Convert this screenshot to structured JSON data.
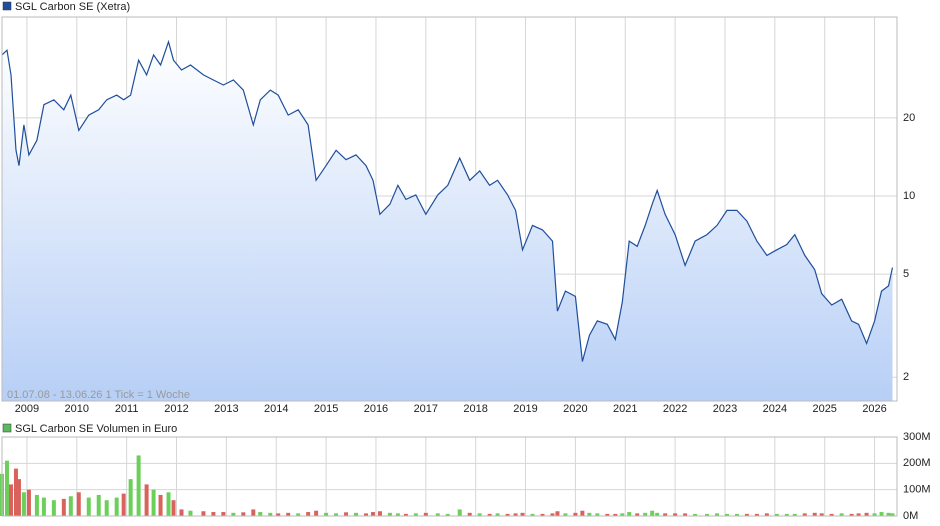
{
  "chart_data": [
    {
      "type": "line",
      "title": "SGL Carbon SE (Xetra)",
      "annotation": "01.07.08 - 13.06.26    1 Tick = 1 Woche",
      "log_scale": true,
      "grid": true,
      "color": "#1f4e9c",
      "xlim": [
        2008.5,
        2026.45
      ],
      "xticks": [
        2009,
        2010,
        2011,
        2012,
        2013,
        2014,
        2015,
        2016,
        2017,
        2018,
        2019,
        2020,
        2021,
        2022,
        2023,
        2024,
        2025,
        2026
      ],
      "ylim": [
        1.62,
        49
      ],
      "yticks": [
        2,
        5,
        10,
        20
      ],
      "x": [
        2008.5,
        2008.6,
        2008.68,
        2008.78,
        2008.84,
        2008.94,
        2009.04,
        2009.2,
        2009.34,
        2009.54,
        2009.74,
        2009.88,
        2010.04,
        2010.24,
        2010.44,
        2010.6,
        2010.8,
        2010.94,
        2011.08,
        2011.24,
        2011.4,
        2011.54,
        2011.68,
        2011.84,
        2011.94,
        2012.1,
        2012.28,
        2012.54,
        2012.74,
        2012.94,
        2013.14,
        2013.34,
        2013.54,
        2013.68,
        2013.88,
        2014.04,
        2014.24,
        2014.44,
        2014.64,
        2014.8,
        2015.0,
        2015.2,
        2015.4,
        2015.6,
        2015.8,
        2015.94,
        2016.08,
        2016.28,
        2016.44,
        2016.6,
        2016.8,
        2017.0,
        2017.24,
        2017.44,
        2017.68,
        2017.88,
        2018.08,
        2018.28,
        2018.44,
        2018.64,
        2018.8,
        2018.94,
        2019.14,
        2019.34,
        2019.54,
        2019.64,
        2019.8,
        2020.0,
        2020.14,
        2020.28,
        2020.44,
        2020.64,
        2020.8,
        2020.94,
        2021.08,
        2021.24,
        2021.4,
        2021.54,
        2021.64,
        2021.8,
        2022.0,
        2022.2,
        2022.4,
        2022.64,
        2022.84,
        2023.04,
        2023.24,
        2023.44,
        2023.64,
        2023.84,
        2024.04,
        2024.24,
        2024.4,
        2024.6,
        2024.8,
        2024.94,
        2025.14,
        2025.34,
        2025.54,
        2025.68,
        2025.84,
        2026.0,
        2026.14,
        2026.28,
        2026.36
      ],
      "values": [
        35,
        36.5,
        29.3,
        15,
        13.1,
        18.8,
        14.4,
        16.4,
        22.5,
        23.5,
        21.5,
        24.5,
        17.9,
        20.5,
        21.5,
        23.5,
        24.5,
        23.5,
        24.5,
        33.4,
        29.3,
        35,
        32,
        39.3,
        33.4,
        30.6,
        32,
        29.3,
        28,
        26.8,
        28,
        25.6,
        18.8,
        23.5,
        25.6,
        24.5,
        20.5,
        21.5,
        18.8,
        11.5,
        13.1,
        15,
        13.8,
        14.4,
        13.1,
        11.5,
        8.5,
        9.3,
        11,
        9.7,
        10.1,
        8.5,
        10.1,
        11,
        14,
        11.5,
        12.5,
        11,
        11.5,
        10.1,
        8.8,
        6.2,
        7.7,
        7.4,
        6.7,
        3.6,
        4.3,
        4.1,
        2.3,
        2.9,
        3.3,
        3.2,
        2.8,
        3.9,
        6.7,
        6.4,
        7.7,
        9.3,
        10.5,
        8.5,
        7.1,
        5.4,
        6.7,
        7.1,
        7.7,
        8.8,
        8.8,
        8,
        6.7,
        5.9,
        6.2,
        6.5,
        7.1,
        5.9,
        5.2,
        4.2,
        3.8,
        4,
        3.3,
        3.2,
        2.7,
        3.3,
        4.3,
        4.5,
        5.3
      ]
    },
    {
      "type": "volume",
      "title": "SGL Carbon SE Volumen in Euro",
      "color": "#5cb85c",
      "up_color": "#6ccf5a",
      "down_color": "#d9635c",
      "grid": true,
      "ylim": [
        0,
        300
      ],
      "yticks": [
        {
          "value": 0,
          "label": "0M"
        },
        {
          "value": 100,
          "label": "100M"
        },
        {
          "value": 200,
          "label": "200M"
        },
        {
          "value": 300,
          "label": "300M"
        }
      ],
      "values": [
        160,
        210,
        120,
        180,
        140,
        90,
        100,
        80,
        70,
        60,
        65,
        75,
        90,
        70,
        80,
        60,
        70,
        85,
        140,
        230,
        120,
        100,
        80,
        90,
        60,
        25,
        20,
        18,
        15,
        15,
        12,
        14,
        25,
        15,
        12,
        10,
        12,
        10,
        15,
        20,
        12,
        10,
        14,
        12,
        10,
        15,
        18,
        12,
        10,
        8,
        10,
        12,
        10,
        8,
        25,
        12,
        10,
        8,
        10,
        8,
        10,
        12,
        8,
        8,
        10,
        18,
        10,
        12,
        20,
        12,
        10,
        8,
        8,
        10,
        15,
        10,
        12,
        20,
        12,
        10,
        10,
        10,
        8,
        8,
        10,
        8,
        8,
        8,
        8,
        10,
        8,
        8,
        8,
        10,
        12,
        10,
        8,
        10,
        8,
        10,
        12,
        10,
        15,
        12,
        10
      ]
    }
  ]
}
